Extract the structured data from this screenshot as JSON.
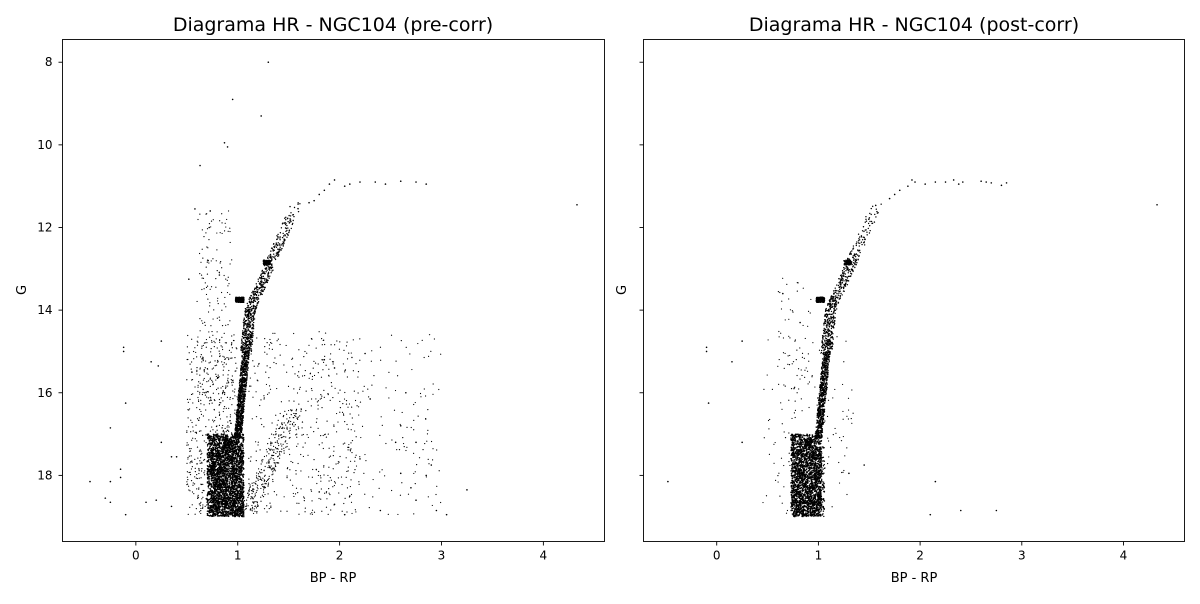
{
  "chart_data": [
    {
      "type": "scatter",
      "title": "Diagrama HR - NGC104 (pre-corr)",
      "xlabel": "BP - RP",
      "ylabel": "G",
      "xlim": [
        -0.72,
        4.6
      ],
      "ylim": [
        19.6,
        7.45
      ],
      "y_inverted": true,
      "xticks": [
        0,
        1,
        2,
        3,
        4
      ],
      "yticks": [
        8,
        10,
        12,
        14,
        16,
        18
      ],
      "grid": false,
      "marker_color": "#000000",
      "series": [
        {
          "points": [
            [
              1.3,
              8.0
            ],
            [
              0.95,
              8.9
            ],
            [
              1.23,
              9.3
            ],
            [
              0.87,
              9.95
            ],
            [
              0.9,
              10.05
            ],
            [
              0.63,
              10.5
            ],
            [
              4.33,
              11.45
            ],
            [
              2.85,
              10.95
            ],
            [
              2.75,
              10.9
            ],
            [
              2.6,
              10.88
            ],
            [
              2.45,
              10.95
            ],
            [
              2.35,
              10.9
            ],
            [
              2.2,
              10.9
            ],
            [
              2.1,
              10.95
            ],
            [
              2.05,
              11.0
            ],
            [
              1.95,
              10.85
            ],
            [
              1.9,
              10.95
            ],
            [
              1.85,
              11.1
            ],
            [
              1.8,
              11.2
            ],
            [
              1.75,
              11.35
            ],
            [
              1.7,
              11.4
            ],
            [
              0.58,
              11.55
            ],
            [
              0.73,
              11.6
            ],
            [
              0.72,
              12.0
            ],
            [
              0.71,
              12.8
            ],
            [
              0.52,
              13.25
            ],
            [
              0.82,
              13.15
            ],
            [
              -0.12,
              14.9
            ],
            [
              -0.12,
              15.0
            ],
            [
              0.15,
              15.25
            ],
            [
              0.22,
              15.35
            ],
            [
              0.25,
              14.75
            ],
            [
              0.55,
              15.5
            ],
            [
              1.85,
              15.2
            ],
            [
              2.25,
              15.05
            ],
            [
              1.95,
              15.4
            ],
            [
              2.3,
              16.15
            ],
            [
              2.65,
              16.0
            ],
            [
              2.6,
              16.8
            ],
            [
              2.55,
              17.2
            ],
            [
              2.75,
              17.2
            ],
            [
              2.2,
              17.6
            ],
            [
              2.9,
              17.75
            ],
            [
              2.6,
              17.95
            ],
            [
              2.85,
              18.0
            ],
            [
              3.25,
              18.35
            ],
            [
              3.05,
              18.95
            ],
            [
              2.7,
              18.3
            ],
            [
              2.75,
              18.6
            ],
            [
              2.4,
              18.85
            ],
            [
              2.95,
              18.85
            ],
            [
              2.1,
              18.5
            ],
            [
              1.95,
              18.7
            ],
            [
              1.8,
              18.4
            ],
            [
              2.05,
              18.95
            ],
            [
              -0.1,
              16.25
            ],
            [
              -0.25,
              16.85
            ],
            [
              0.25,
              17.2
            ],
            [
              0.35,
              17.55
            ],
            [
              0.4,
              17.55
            ],
            [
              -0.45,
              18.15
            ],
            [
              -0.25,
              18.15
            ],
            [
              -0.15,
              17.85
            ],
            [
              -0.15,
              18.05
            ],
            [
              -0.3,
              18.55
            ],
            [
              -0.25,
              18.65
            ],
            [
              -0.1,
              18.95
            ],
            [
              0.1,
              18.65
            ],
            [
              0.35,
              18.75
            ],
            [
              0.2,
              18.6
            ]
          ]
        }
      ]
    },
    {
      "type": "scatter",
      "title": "Diagrama HR - NGC104 (post-corr)",
      "xlabel": "BP - RP",
      "ylabel": "G",
      "xlim": [
        -0.72,
        4.6
      ],
      "ylim": [
        19.6,
        7.45
      ],
      "y_inverted": true,
      "xticks": [
        0,
        1,
        2,
        3,
        4
      ],
      "yticks": [
        8,
        10,
        12,
        14,
        16,
        18
      ],
      "grid": false,
      "marker_color": "#000000",
      "series": [
        {
          "points": [
            [
              4.33,
              11.45
            ],
            [
              2.85,
              10.92
            ],
            [
              2.8,
              10.98
            ],
            [
              2.7,
              10.92
            ],
            [
              2.65,
              10.9
            ],
            [
              2.6,
              10.88
            ],
            [
              2.42,
              10.9
            ],
            [
              2.38,
              10.95
            ],
            [
              2.33,
              10.85
            ],
            [
              2.25,
              10.9
            ],
            [
              2.15,
              10.9
            ],
            [
              2.05,
              10.95
            ],
            [
              1.95,
              10.9
            ],
            [
              1.92,
              10.85
            ],
            [
              1.88,
              11.0
            ],
            [
              1.8,
              11.1
            ],
            [
              1.75,
              11.2
            ],
            [
              1.7,
              11.3
            ],
            [
              0.65,
              13.6
            ],
            [
              0.82,
              14.3
            ],
            [
              -0.1,
              14.9
            ],
            [
              -0.1,
              15.0
            ],
            [
              0.15,
              15.25
            ],
            [
              0.25,
              14.75
            ],
            [
              -0.08,
              16.25
            ],
            [
              0.25,
              17.2
            ],
            [
              -0.48,
              18.15
            ],
            [
              2.15,
              18.15
            ],
            [
              2.1,
              18.95
            ],
            [
              2.4,
              18.85
            ],
            [
              2.75,
              18.85
            ],
            [
              1.3,
              17.95
            ],
            [
              1.45,
              17.75
            ]
          ]
        }
      ]
    }
  ]
}
